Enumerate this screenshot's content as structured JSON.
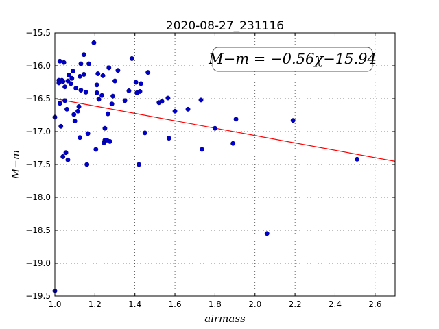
{
  "chart_data": {
    "type": "scatter",
    "title": "2020-08-27_231116",
    "xlabel": "airmass",
    "ylabel": "M−m",
    "xlim": [
      1.0,
      2.7
    ],
    "ylim": [
      -19.5,
      -15.5
    ],
    "grid": true,
    "x_ticks": [
      "1.0",
      "1.2",
      "1.4",
      "1.6",
      "1.8",
      "2.0",
      "2.2",
      "2.4",
      "2.6"
    ],
    "y_ticks": [
      "−15.5",
      "−16.0",
      "−16.5",
      "−17.0",
      "−17.5",
      "−18.0",
      "−18.5",
      "−19.0",
      "−19.5"
    ],
    "annotation": "M−m = −0.56χ−15.94",
    "annotation_position": "top-right",
    "fit_line": {
      "slope": -0.56,
      "intercept": -15.94,
      "color": "#ff0000"
    },
    "point_color": "#0000cc",
    "series": [
      {
        "points": [
          [
            1.0,
            -16.78
          ],
          [
            1.0,
            -19.42
          ],
          [
            1.02,
            -16.22
          ],
          [
            1.02,
            -16.26
          ],
          [
            1.025,
            -15.93
          ],
          [
            1.025,
            -16.57
          ],
          [
            1.03,
            -16.92
          ],
          [
            1.035,
            -16.22
          ],
          [
            1.04,
            -16.24
          ],
          [
            1.04,
            -17.38
          ],
          [
            1.045,
            -15.95
          ],
          [
            1.05,
            -16.32
          ],
          [
            1.05,
            -16.53
          ],
          [
            1.055,
            -17.32
          ],
          [
            1.06,
            -16.66
          ],
          [
            1.065,
            -16.23
          ],
          [
            1.065,
            -17.43
          ],
          [
            1.07,
            -16.14
          ],
          [
            1.08,
            -16.27
          ],
          [
            1.085,
            -16.19
          ],
          [
            1.09,
            -16.08
          ],
          [
            1.095,
            -16.74
          ],
          [
            1.1,
            -16.84
          ],
          [
            1.105,
            -16.34
          ],
          [
            1.115,
            -16.69
          ],
          [
            1.12,
            -16.62
          ],
          [
            1.125,
            -16.16
          ],
          [
            1.125,
            -17.09
          ],
          [
            1.13,
            -15.97
          ],
          [
            1.13,
            -16.37
          ],
          [
            1.145,
            -16.13
          ],
          [
            1.145,
            -15.83
          ],
          [
            1.155,
            -16.4
          ],
          [
            1.16,
            -17.5
          ],
          [
            1.165,
            -17.03
          ],
          [
            1.17,
            -15.97
          ],
          [
            1.195,
            -15.65
          ],
          [
            1.205,
            -17.27
          ],
          [
            1.21,
            -16.29
          ],
          [
            1.21,
            -16.41
          ],
          [
            1.215,
            -16.12
          ],
          [
            1.22,
            -16.51
          ],
          [
            1.235,
            -16.45
          ],
          [
            1.24,
            -16.15
          ],
          [
            1.245,
            -17.17
          ],
          [
            1.25,
            -16.95
          ],
          [
            1.25,
            -17.13
          ],
          [
            1.26,
            -17.13
          ],
          [
            1.265,
            -16.73
          ],
          [
            1.27,
            -16.03
          ],
          [
            1.275,
            -17.15
          ],
          [
            1.285,
            -16.58
          ],
          [
            1.29,
            -16.46
          ],
          [
            1.3,
            -16.23
          ],
          [
            1.315,
            -16.07
          ],
          [
            1.35,
            -16.53
          ],
          [
            1.37,
            -16.38
          ],
          [
            1.385,
            -15.89
          ],
          [
            1.405,
            -16.25
          ],
          [
            1.41,
            -16.41
          ],
          [
            1.42,
            -17.5
          ],
          [
            1.425,
            -16.39
          ],
          [
            1.43,
            -16.27
          ],
          [
            1.45,
            -17.02
          ],
          [
            1.465,
            -16.1
          ],
          [
            1.52,
            -16.56
          ],
          [
            1.535,
            -16.54
          ],
          [
            1.565,
            -16.49
          ],
          [
            1.57,
            -17.1
          ],
          [
            1.6,
            -16.69
          ],
          [
            1.665,
            -16.66
          ],
          [
            1.73,
            -16.52
          ],
          [
            1.735,
            -17.27
          ],
          [
            1.8,
            -16.95
          ],
          [
            1.89,
            -17.18
          ],
          [
            1.905,
            -16.81
          ],
          [
            2.06,
            -18.55
          ],
          [
            2.19,
            -16.83
          ],
          [
            2.51,
            -17.42
          ]
        ]
      }
    ]
  }
}
